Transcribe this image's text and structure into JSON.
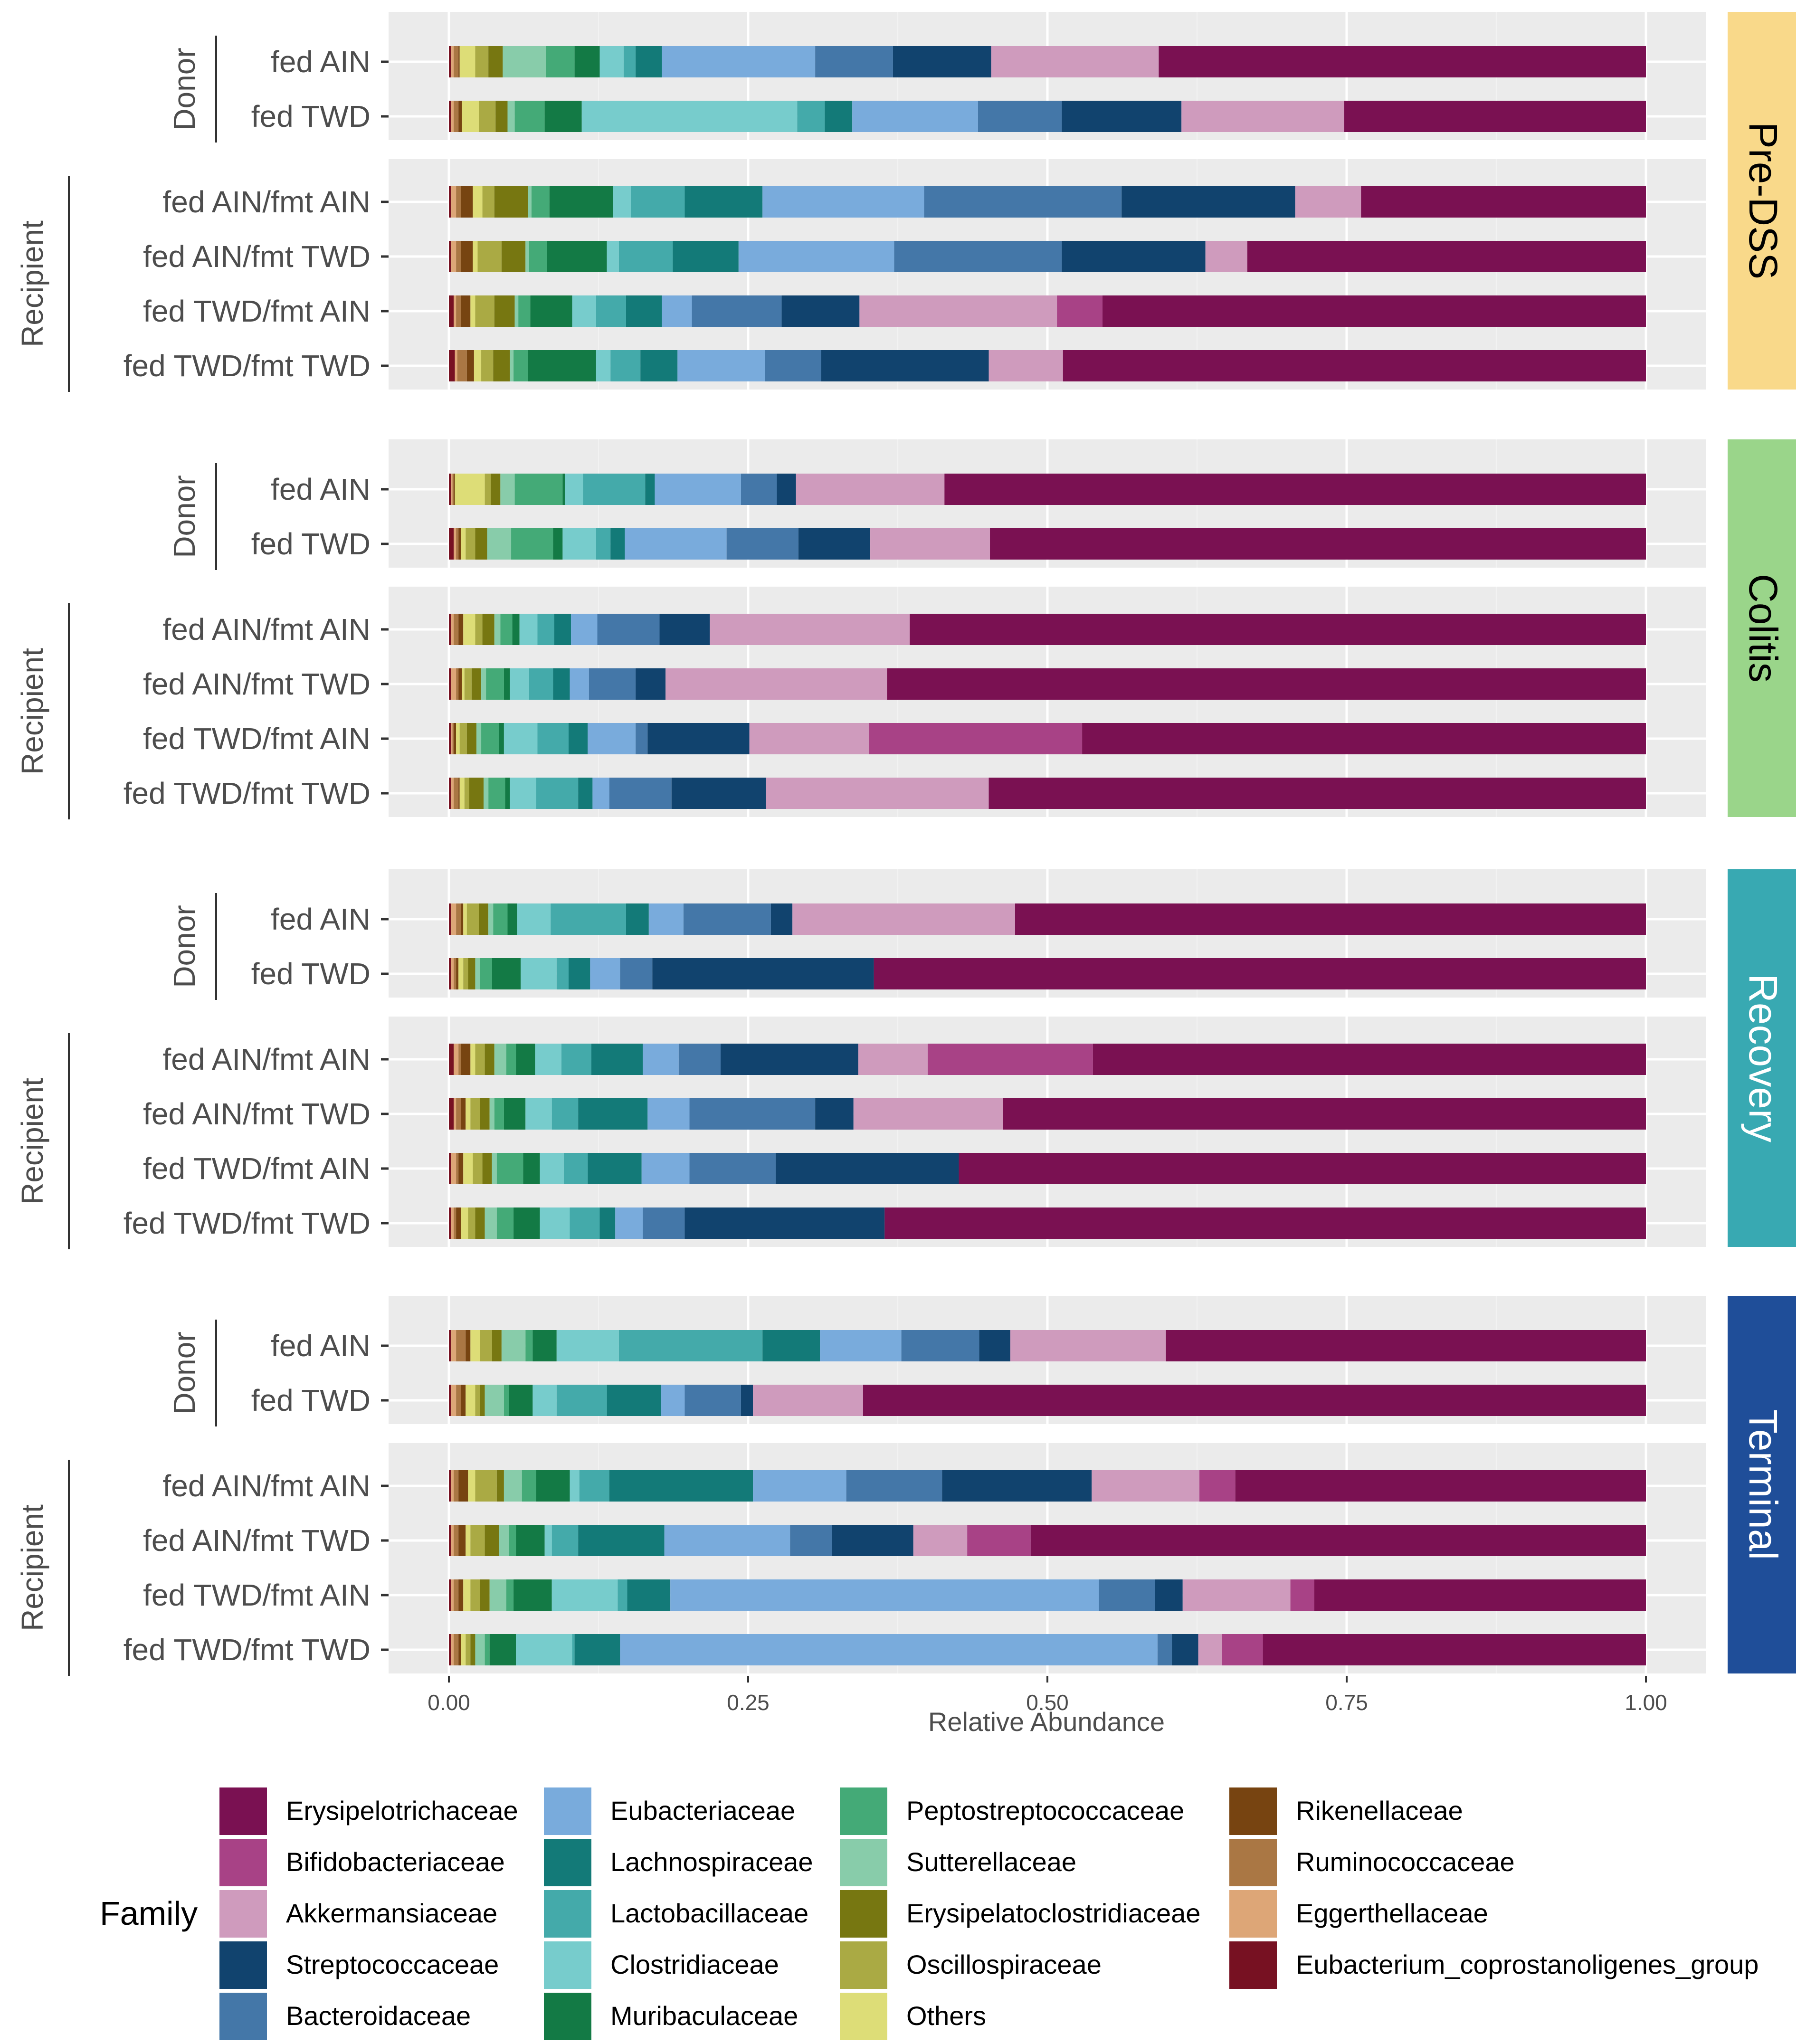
{
  "chart_data": {
    "type": "stacked-horizontal-bar",
    "xlabel": "Relative Abundance",
    "xlim": [
      0,
      1
    ],
    "x_ticks": [
      "0.00",
      "0.25",
      "0.50",
      "0.75",
      "1.00"
    ],
    "legend_title": "Family",
    "group_labels": {
      "donor": "Donor",
      "recipient": "Recipient"
    },
    "families": [
      {
        "name": "Erysipelotrichaceae",
        "color": "#7a1152"
      },
      {
        "name": "Bifidobacteriaceae",
        "color": "#a84286"
      },
      {
        "name": "Akkermansiaceae",
        "color": "#cf9bbd"
      },
      {
        "name": "Streptococcaceae",
        "color": "#11436e"
      },
      {
        "name": "Bacteroidaceae",
        "color": "#4477a8"
      },
      {
        "name": "Eubacteriaceae",
        "color": "#79abdc"
      },
      {
        "name": "Lachnospiraceae",
        "color": "#137a78"
      },
      {
        "name": "Lactobacillaceae",
        "color": "#44aaaa"
      },
      {
        "name": "Clostridiaceae",
        "color": "#77cccc"
      },
      {
        "name": "Muribaculaceae",
        "color": "#137a45"
      },
      {
        "name": "Peptostreptococcaceae",
        "color": "#44aa77"
      },
      {
        "name": "Sutterellaceae",
        "color": "#88ccaa"
      },
      {
        "name": "Erysipelatoclostridiaceae",
        "color": "#777711"
      },
      {
        "name": "Oscillospiraceae",
        "color": "#aaaa44"
      },
      {
        "name": "Others",
        "color": "#dddd77"
      },
      {
        "name": "Rikenellaceae",
        "color": "#774411"
      },
      {
        "name": "Ruminococcaceae",
        "color": "#aa7744"
      },
      {
        "name": "Eggerthellaceae",
        "color": "#dda677"
      },
      {
        "name": "Eubacterium_coprostanoligenes_group",
        "color": "#771122"
      }
    ],
    "stack_order_from_left": [
      "Eubacterium_coprostanoligenes_group",
      "Eggerthellaceae",
      "Ruminococcaceae",
      "Rikenellaceae",
      "Others",
      "Oscillospiraceae",
      "Erysipelatoclostridiaceae",
      "Sutterellaceae",
      "Peptostreptococcaceae",
      "Muribaculaceae",
      "Clostridiaceae",
      "Lactobacillaceae",
      "Lachnospiraceae",
      "Eubacteriaceae",
      "Bacteroidaceae",
      "Streptococcaceae",
      "Akkermansiaceae",
      "Bifidobacteriaceae",
      "Erysipelotrichaceae"
    ],
    "panels": [
      {
        "strip": "Pre-DSS",
        "strip_color": "#f9d98a",
        "strip_text_color": "#000000",
        "donor": [
          {
            "label": "fed AIN",
            "values": [
              0.002,
              0.002,
              0.004,
              0.001,
              0.013,
              0.011,
              0.012,
              0.036,
              0.024,
              0.021,
              0.02,
              0.01,
              0.022,
              0.128,
              0.065,
              0.082,
              0.14,
              0.4
            ]
          },
          {
            "label": "fed TWD",
            "values": [
              0.002,
              0.002,
              0.004,
              0.003,
              0.014,
              0.014,
              0.01,
              0.006,
              0.025,
              0.031,
              0.18,
              0.023,
              0.023,
              0.105,
              0.07,
              0.1,
              0.136,
              0.25
            ]
          }
        ],
        "recipient": [
          {
            "label": "fed AIN/fmt AIN",
            "values": [
              0.002,
              0.004,
              0.004,
              0.01,
              0.008,
              0.01,
              0.028,
              0.003,
              0.015,
              0.053,
              0.015,
              0.045,
              0.065,
              0.135,
              0.165,
              0.145,
              0.055,
              0.225
            ]
          },
          {
            "label": "fed AIN/fmt TWD",
            "values": [
              0.002,
              0.004,
              0.004,
              0.01,
              0.004,
              0.02,
              0.02,
              0.003,
              0.015,
              0.05,
              0.01,
              0.045,
              0.055,
              0.13,
              0.14,
              0.12,
              0.035,
              0.325
            ]
          },
          {
            "label": "fed TWD/fmt AIN",
            "values": [
              0.004,
              0.002,
              0.004,
              0.008,
              0.004,
              0.016,
              0.017,
              0.003,
              0.01,
              0.035,
              0.02,
              0.025,
              0.03,
              0.025,
              0.075,
              0.065,
              0.165,
              0.038,
              0.45
            ]
          },
          {
            "label": "fed TWD/fmt TWD",
            "values": [
              0.005,
              0.002,
              0.008,
              0.006,
              0.006,
              0.01,
              0.014,
              0.003,
              0.012,
              0.057,
              0.012,
              0.025,
              0.031,
              0.073,
              0.047,
              0.14,
              0.062,
              0.47
            ]
          }
        ]
      },
      {
        "strip": "Colitis",
        "strip_color": "#9ad58a",
        "strip_text_color": "#000000",
        "donor": [
          {
            "label": "fed AIN",
            "values": [
              0.002,
              0.001,
              0.001,
              0.001,
              0.025,
              0.005,
              0.008,
              0.012,
              0.04,
              0.002,
              0.015,
              0.052,
              0.008,
              0.072,
              0.03,
              0.016,
              0.124,
              0.586
            ]
          },
          {
            "label": "fed TWD",
            "values": [
              0.004,
              0.002,
              0.002,
              0.002,
              0.004,
              0.008,
              0.01,
              0.02,
              0.035,
              0.008,
              0.028,
              0.012,
              0.012,
              0.085,
              0.06,
              0.06,
              0.1,
              0.543
            ]
          }
        ],
        "recipient": [
          {
            "label": "fed AIN/fmt AIN",
            "values": [
              0.002,
              0.002,
              0.004,
              0.004,
              0.01,
              0.006,
              0.01,
              0.005,
              0.01,
              0.006,
              0.015,
              0.014,
              0.014,
              0.022,
              0.052,
              0.042,
              0.167,
              0.611
            ]
          },
          {
            "label": "fed AIN/fmt TWD",
            "values": [
              0.002,
              0.004,
              0.002,
              0.003,
              0.002,
              0.006,
              0.008,
              0.004,
              0.015,
              0.005,
              0.016,
              0.02,
              0.014,
              0.016,
              0.039,
              0.025,
              0.185,
              0.636
            ]
          },
          {
            "label": "fed TWD/fmt AIN",
            "values": [
              0.002,
              0.001,
              0.001,
              0.002,
              0.003,
              0.006,
              0.008,
              0.004,
              0.015,
              0.004,
              0.028,
              0.026,
              0.016,
              0.04,
              0.01,
              0.085,
              0.1,
              0.178,
              0.474
            ]
          },
          {
            "label": "fed TWD/fmt TWD",
            "values": [
              0.002,
              0.002,
              0.004,
              0.001,
              0.004,
              0.004,
              0.012,
              0.004,
              0.014,
              0.004,
              0.022,
              0.035,
              0.012,
              0.014,
              0.052,
              0.079,
              0.186,
              0.546
            ]
          }
        ]
      },
      {
        "strip": "Recovery",
        "strip_color": "#38a9b2",
        "strip_text_color": "#ffffff",
        "donor": [
          {
            "label": "fed AIN",
            "values": [
              0.002,
              0.004,
              0.004,
              0.002,
              0.003,
              0.01,
              0.008,
              0.004,
              0.012,
              0.008,
              0.028,
              0.063,
              0.019,
              0.029,
              0.073,
              0.018,
              0.186,
              0.529
            ]
          },
          {
            "label": "fed TWD",
            "values": [
              0.002,
              0.002,
              0.002,
              0.002,
              0.004,
              0.004,
              0.006,
              0.004,
              0.01,
              0.024,
              0.03,
              0.01,
              0.018,
              0.025,
              0.027,
              0.185,
              0.645
            ]
          }
        ],
        "recipient": [
          {
            "label": "fed AIN/fmt AIN",
            "values": [
              0.004,
              0.004,
              0.002,
              0.008,
              0.004,
              0.008,
              0.008,
              0.01,
              0.008,
              0.016,
              0.022,
              0.025,
              0.043,
              0.03,
              0.035,
              0.115,
              0.058,
              0.138,
              0.475
            ]
          },
          {
            "label": "fed AIN/fmt TWD",
            "values": [
              0.004,
              0.002,
              0.004,
              0.004,
              0.004,
              0.008,
              0.008,
              0.004,
              0.008,
              0.018,
              0.022,
              0.022,
              0.058,
              0.035,
              0.105,
              0.032,
              0.125,
              0.542
            ]
          },
          {
            "label": "fed TWD/fmt AIN",
            "values": [
              0.002,
              0.004,
              0.002,
              0.004,
              0.008,
              0.008,
              0.008,
              0.004,
              0.022,
              0.014,
              0.02,
              0.02,
              0.045,
              0.04,
              0.072,
              0.153,
              0.582
            ]
          },
          {
            "label": "fed TWD/fmt TWD",
            "values": [
              0.002,
              0.002,
              0.002,
              0.004,
              0.006,
              0.006,
              0.008,
              0.01,
              0.014,
              0.022,
              0.025,
              0.025,
              0.013,
              0.023,
              0.035,
              0.167,
              0.637
            ]
          }
        ]
      },
      {
        "strip": "Terminal",
        "strip_color": "#1f4e99",
        "strip_text_color": "#ffffff",
        "donor": [
          {
            "label": "fed AIN",
            "values": [
              0.002,
              0.004,
              0.008,
              0.004,
              0.008,
              0.01,
              0.008,
              0.02,
              0.006,
              0.02,
              0.052,
              0.12,
              0.048,
              0.068,
              0.065,
              0.026,
              0.13,
              0.411
            ]
          },
          {
            "label": "fed TWD",
            "values": [
              0.002,
              0.004,
              0.004,
              0.004,
              0.008,
              0.004,
              0.004,
              0.016,
              0.004,
              0.02,
              0.02,
              0.042,
              0.045,
              0.02,
              0.047,
              0.01,
              0.092,
              0.664
            ]
          }
        ],
        "recipient": [
          {
            "label": "fed AIN/fmt AIN",
            "values": [
              0.002,
              0.002,
              0.004,
              0.008,
              0.006,
              0.018,
              0.006,
              0.015,
              0.012,
              0.028,
              0.008,
              0.025,
              0.12,
              0.078,
              0.08,
              0.125,
              0.09,
              0.03,
              0.349
            ]
          },
          {
            "label": "fed AIN/fmt TWD",
            "values": [
              0.002,
              0.002,
              0.004,
              0.006,
              0.004,
              0.012,
              0.012,
              0.008,
              0.006,
              0.024,
              0.006,
              0.022,
              0.072,
              0.105,
              0.035,
              0.068,
              0.045,
              0.053,
              0.517
            ]
          },
          {
            "label": "fed TWD/fmt AIN",
            "values": [
              0.002,
              0.002,
              0.004,
              0.004,
              0.006,
              0.008,
              0.008,
              0.014,
              0.006,
              0.032,
              0.055,
              0.008,
              0.036,
              0.358,
              0.047,
              0.023,
              0.09,
              0.02,
              0.277
            ]
          },
          {
            "label": "fed TWD/fmt TWD",
            "values": [
              0.002,
              0.002,
              0.004,
              0.002,
              0.004,
              0.004,
              0.004,
              0.008,
              0.004,
              0.022,
              0.047,
              0.002,
              0.038,
              0.449,
              0.012,
              0.022,
              0.02,
              0.034,
              0.327
            ]
          }
        ]
      }
    ]
  }
}
